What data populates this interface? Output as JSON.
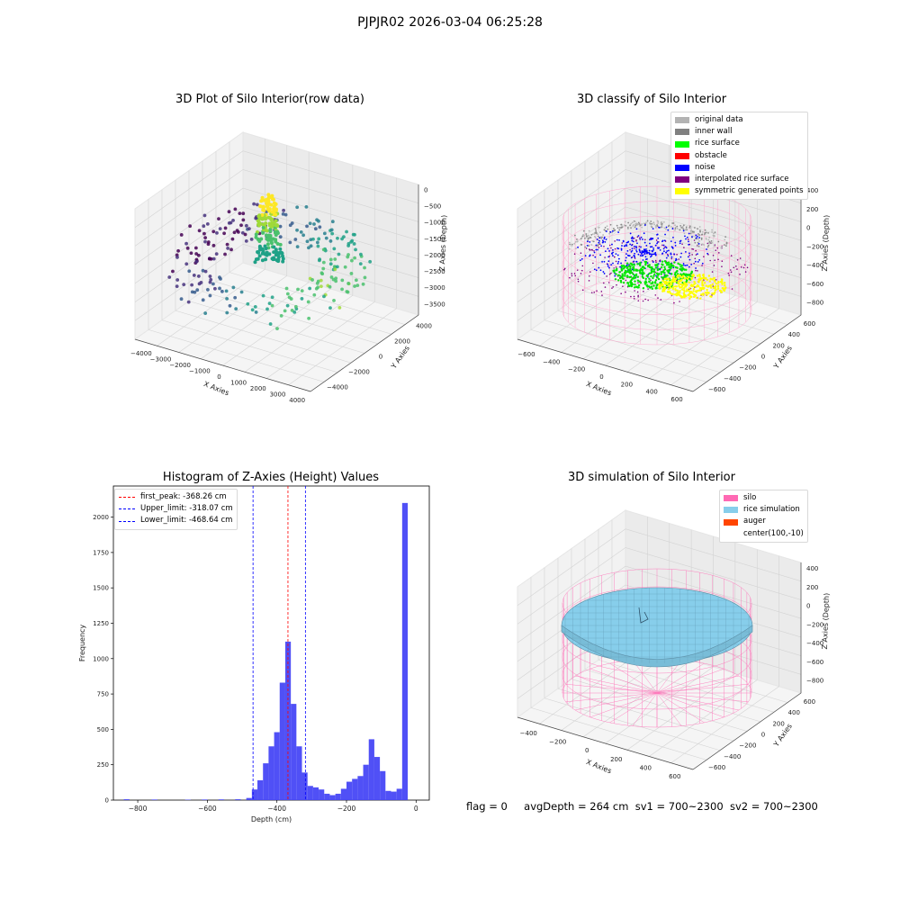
{
  "figure": {
    "suptitle": "PJPJR02 2026-03-04 06:25:28",
    "footer": {
      "flag": "flag = 0",
      "avg_depth": "avgDepth = 264 cm",
      "sv1": "sv1 = 700~2300",
      "sv2": "sv2 = 700~2300"
    }
  },
  "chart_data": [
    {
      "type": "scatter",
      "projection": "3d",
      "title": "3D Plot of Silo Interior(row data)",
      "xlabel": "X Axies",
      "ylabel": "Y Axies",
      "zlabel": "Z Axies (Depth)",
      "xticks": [
        "−4000",
        "−3000",
        "−2000",
        "−1000",
        "0",
        "1000",
        "2000",
        "3000",
        "4000"
      ],
      "yticks": [
        "−4000",
        "−2000",
        "0",
        "2000",
        "4000"
      ],
      "zticks": [
        "0",
        "−500",
        "−1000",
        "−1500",
        "−2000",
        "−2500",
        "−3000",
        "−3500"
      ],
      "colormap": "viridis"
    },
    {
      "type": "scatter",
      "projection": "3d",
      "title": "3D classify of Silo Interior",
      "xlabel": "X Axies",
      "ylabel": "Y Axies",
      "zlabel": "Z Axies (Depth)",
      "xticks": [
        "−600",
        "−400",
        "−200",
        "0",
        "200",
        "400",
        "600"
      ],
      "yticks": [
        "−600",
        "−400",
        "−200",
        "0",
        "200",
        "400",
        "600"
      ],
      "zticks": [
        "400",
        "200",
        "0",
        "−200",
        "−400",
        "−600",
        "−800"
      ],
      "legend": [
        {
          "label": "original data",
          "color": "#b3b3b3"
        },
        {
          "label": "inner wall",
          "color": "#808080"
        },
        {
          "label": "rice surface",
          "color": "#00ff00"
        },
        {
          "label": "obstacle",
          "color": "#ff0000"
        },
        {
          "label": "noise",
          "color": "#0000ff"
        },
        {
          "label": "interpolated rice surface",
          "color": "#800080"
        },
        {
          "label": "symmetric generated points",
          "color": "#ffff00"
        }
      ]
    },
    {
      "type": "bar",
      "title": "Histogram of Z-Axies (Height) Values",
      "xlabel": "Depth (cm)",
      "ylabel": "Frequency",
      "xlim": [
        -870,
        38
      ],
      "ylim": [
        0,
        2220
      ],
      "xticks": [
        -800,
        -600,
        -400,
        -200,
        0
      ],
      "xtick_labels": [
        "−800",
        "−600",
        "−400",
        "−200",
        "0"
      ],
      "yticks": [
        0,
        250,
        500,
        750,
        1000,
        1250,
        1500,
        1750,
        2000
      ],
      "bar_color": "#4747f5",
      "bin_width": 16,
      "bins": [
        {
          "x": -840,
          "v": 6
        },
        {
          "x": -760,
          "v": 4
        },
        {
          "x": -664,
          "v": 3
        },
        {
          "x": -616,
          "v": 4
        },
        {
          "x": -568,
          "v": 5
        },
        {
          "x": -520,
          "v": 6
        },
        {
          "x": -488,
          "v": 15
        },
        {
          "x": -472,
          "v": 75
        },
        {
          "x": -456,
          "v": 140
        },
        {
          "x": -440,
          "v": 260
        },
        {
          "x": -424,
          "v": 380
        },
        {
          "x": -408,
          "v": 480
        },
        {
          "x": -392,
          "v": 830
        },
        {
          "x": -376,
          "v": 1120
        },
        {
          "x": -360,
          "v": 680
        },
        {
          "x": -344,
          "v": 380
        },
        {
          "x": -328,
          "v": 195
        },
        {
          "x": -312,
          "v": 100
        },
        {
          "x": -296,
          "v": 90
        },
        {
          "x": -280,
          "v": 75
        },
        {
          "x": -264,
          "v": 45
        },
        {
          "x": -248,
          "v": 35
        },
        {
          "x": -232,
          "v": 45
        },
        {
          "x": -216,
          "v": 80
        },
        {
          "x": -200,
          "v": 130
        },
        {
          "x": -184,
          "v": 150
        },
        {
          "x": -168,
          "v": 170
        },
        {
          "x": -152,
          "v": 250
        },
        {
          "x": -136,
          "v": 430
        },
        {
          "x": -120,
          "v": 305
        },
        {
          "x": -104,
          "v": 205
        },
        {
          "x": -88,
          "v": 65
        },
        {
          "x": -72,
          "v": 60
        },
        {
          "x": -56,
          "v": 80
        },
        {
          "x": -40,
          "v": 2100
        }
      ],
      "vlines": [
        {
          "label": "first_peak: -368.26 cm",
          "x": -368.26,
          "color": "#ff0000"
        },
        {
          "label": "Upper_limit: -318.07 cm",
          "x": -318.07,
          "color": "#0000ff"
        },
        {
          "label": "Lower_limit: -468.64 cm",
          "x": -468.64,
          "color": "#0000ff"
        }
      ]
    },
    {
      "type": "surface",
      "projection": "3d",
      "title": "3D simulation of Silo Interior",
      "xlabel": "X Axies",
      "ylabel": "Y Axies",
      "zlabel": "Z Axies (Depth)",
      "xticks": [
        "−400",
        "−200",
        "0",
        "200",
        "400",
        "600"
      ],
      "yticks": [
        "−600",
        "−400",
        "−200",
        "0",
        "200",
        "400",
        "600"
      ],
      "zticks": [
        "400",
        "200",
        "0",
        "−200",
        "−400",
        "−600",
        "−800"
      ],
      "legend": [
        {
          "label": "silo",
          "color": "#ff69b4"
        },
        {
          "label": "rice simulation",
          "color": "#87ceeb"
        },
        {
          "label": "auger",
          "color": "#ff4500"
        },
        {
          "label": "center(100,-10)",
          "color": ""
        }
      ]
    }
  ]
}
